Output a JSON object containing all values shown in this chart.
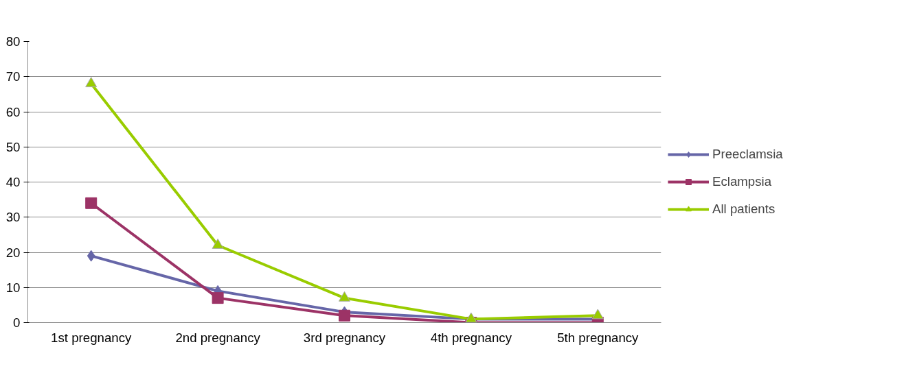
{
  "chart_data": {
    "type": "line",
    "categories": [
      "1st pregnancy",
      "2nd pregnancy",
      "3rd pregnancy",
      "4th pregnancy",
      "5th pregnancy"
    ],
    "series": [
      {
        "name": "Preeclamsia",
        "color": "#6666a8",
        "marker": "diamond",
        "values": [
          19,
          9,
          3,
          1,
          1
        ]
      },
      {
        "name": "Eclampsia",
        "color": "#9c3366",
        "marker": "square",
        "values": [
          34,
          7,
          2,
          0,
          0
        ]
      },
      {
        "name": "All patients",
        "color": "#99cc00",
        "marker": "triangle",
        "values": [
          68,
          22,
          7,
          1,
          2
        ]
      }
    ],
    "ylim": [
      0,
      80
    ],
    "yticks": [
      0,
      10,
      20,
      30,
      40,
      50,
      60,
      70,
      80
    ],
    "grid": "y",
    "legend": "right",
    "line_style": "solid"
  }
}
